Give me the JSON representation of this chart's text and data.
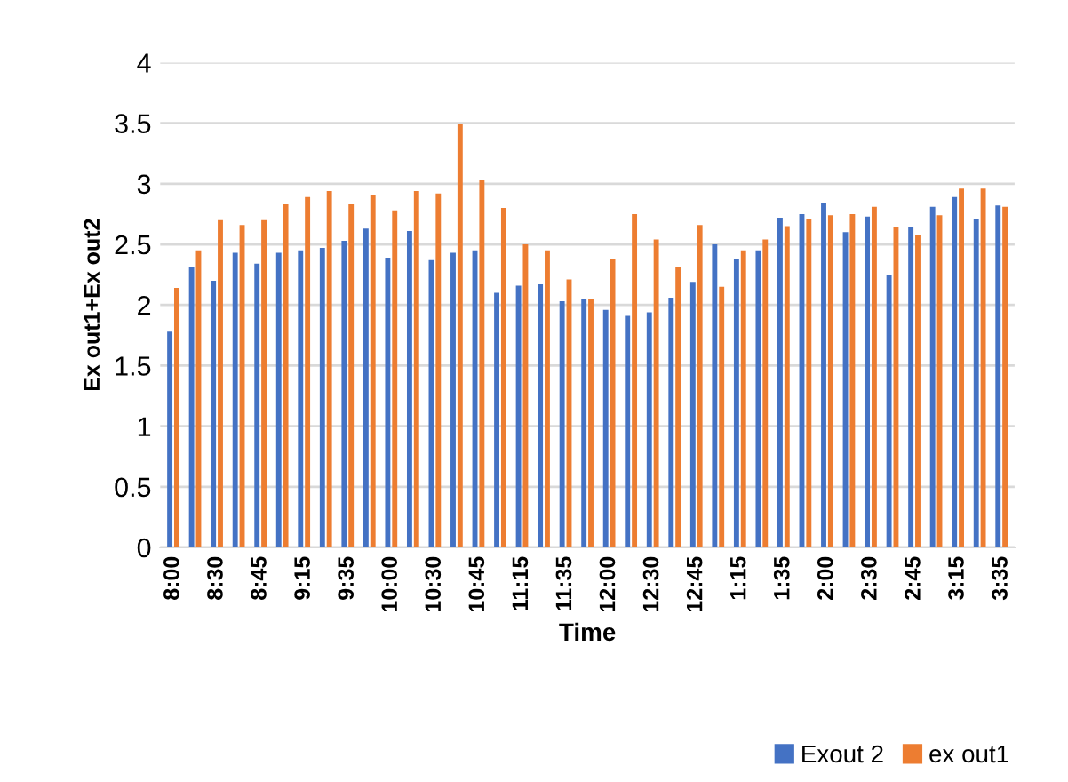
{
  "chart_data": {
    "type": "bar",
    "xlabel": "Time",
    "ylabel": "Ex out1+Ex out2",
    "categories": [
      "8:00",
      null,
      "8:30",
      null,
      "8:45",
      null,
      "9:15",
      null,
      "9:35",
      null,
      "10:00",
      null,
      "10:30",
      null,
      "10:45",
      null,
      "11:15",
      null,
      "11:35",
      null,
      "12:00",
      null,
      "12:30",
      null,
      "12:45",
      null,
      "1:15",
      null,
      "1:35",
      null,
      "2:00",
      null,
      "2:30",
      null,
      "2:45",
      null,
      "3:15",
      null,
      "3:35"
    ],
    "series": [
      {
        "name": "Exout 2",
        "color": "#4472c4",
        "values": [
          1.78,
          2.31,
          2.2,
          2.43,
          2.34,
          2.43,
          2.45,
          2.47,
          2.53,
          2.63,
          2.39,
          2.61,
          2.37,
          2.43,
          2.45,
          2.1,
          2.16,
          2.17,
          2.03,
          2.05,
          1.96,
          1.91,
          1.94,
          2.06,
          2.19,
          2.5,
          2.38,
          2.45,
          2.72,
          2.75,
          2.84,
          2.6,
          2.73,
          2.25,
          2.64,
          2.81,
          2.89,
          2.71,
          2.82
        ]
      },
      {
        "name": "ex out1",
        "color": "#ed7d31",
        "values": [
          2.14,
          2.45,
          2.7,
          2.66,
          2.7,
          2.83,
          2.89,
          2.94,
          2.83,
          2.91,
          2.78,
          2.94,
          2.92,
          3.49,
          3.03,
          2.8,
          2.5,
          2.45,
          2.21,
          2.05,
          2.38,
          2.75,
          2.54,
          2.31,
          2.66,
          2.15,
          2.45,
          2.54,
          2.65,
          2.71,
          2.74,
          2.75,
          2.81,
          2.64,
          2.58,
          2.74,
          2.96,
          2.96,
          2.81
        ]
      }
    ],
    "ylim": [
      0,
      4
    ],
    "yticks": [
      0,
      0.5,
      1,
      1.5,
      2,
      2.5,
      3,
      3.5,
      4
    ],
    "grid": "y",
    "legend": "bottom right"
  }
}
